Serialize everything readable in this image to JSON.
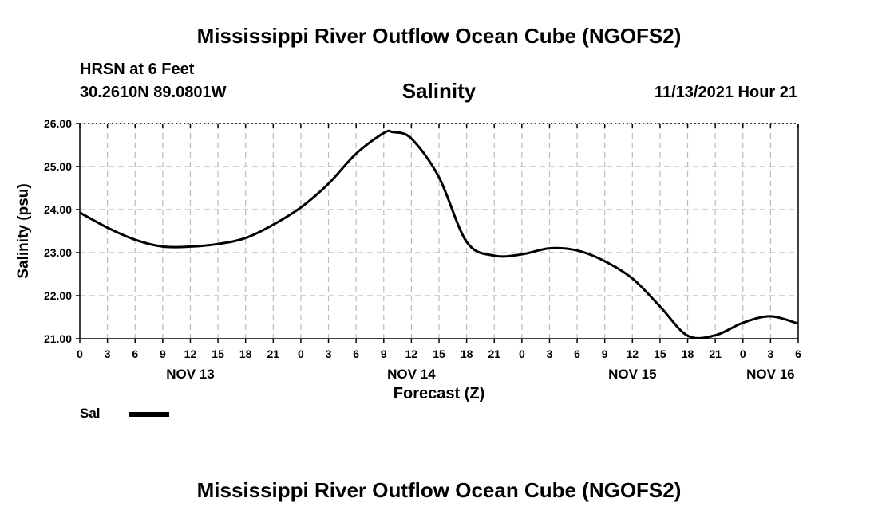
{
  "header": {
    "title": "Mississippi River Outflow Ocean Cube (NGOFS2)",
    "station": "HRSN at 6 Feet",
    "coords": "30.2610N  89.0801W",
    "subtitle": "Salinity",
    "datetime": "11/13/2021 Hour 21"
  },
  "footer": {
    "title": "Mississippi River Outflow Ocean Cube (NGOFS2)"
  },
  "legend": {
    "label": "Sal"
  },
  "chart_data": {
    "type": "line",
    "title": "Salinity",
    "xlabel": "Forecast (Z)",
    "ylabel": "Salinity (psu)",
    "ylim": [
      21.0,
      26.0
    ],
    "yticks": [
      "21.00",
      "22.00",
      "23.00",
      "24.00",
      "25.00",
      "26.00"
    ],
    "xlim_hours": [
      0,
      78
    ],
    "xtick_labels": [
      "0",
      "3",
      "6",
      "9",
      "12",
      "15",
      "18",
      "21",
      "0",
      "3",
      "6",
      "9",
      "12",
      "15",
      "18",
      "21",
      "0",
      "3",
      "6",
      "9",
      "12",
      "15",
      "18",
      "21",
      "0",
      "3",
      "6"
    ],
    "day_labels": [
      {
        "label": "NOV 13",
        "hour": 12
      },
      {
        "label": "NOV 14",
        "hour": 36
      },
      {
        "label": "NOV 15",
        "hour": 60
      },
      {
        "label": "NOV 16",
        "hour": 75
      }
    ],
    "grid": true,
    "series": [
      {
        "name": "Sal",
        "x_hours": [
          0,
          3,
          6,
          9,
          12,
          15,
          18,
          21,
          24,
          27,
          30,
          33,
          34,
          36,
          39,
          42,
          45,
          48,
          51,
          54,
          57,
          60,
          63,
          66,
          69,
          72,
          75,
          78
        ],
        "values": [
          23.93,
          23.58,
          23.3,
          23.14,
          23.14,
          23.2,
          23.34,
          23.65,
          24.05,
          24.6,
          25.3,
          25.78,
          25.8,
          25.65,
          24.75,
          23.25,
          22.93,
          22.96,
          23.1,
          23.05,
          22.8,
          22.4,
          21.75,
          21.07,
          21.08,
          21.37,
          21.52,
          21.35
        ]
      }
    ]
  }
}
